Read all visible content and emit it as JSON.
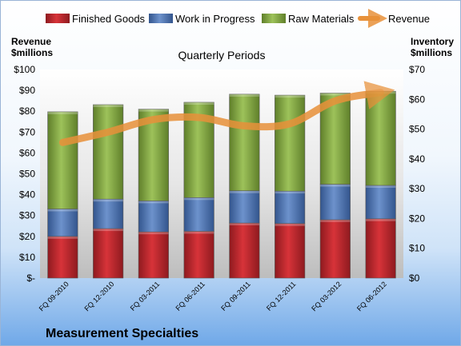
{
  "chart_data": {
    "type": "bar",
    "stacked": true,
    "title": "Quarterly Periods",
    "company": "Measurement Specialties",
    "categories": [
      "FQ 09-2010",
      "FQ 12-2010",
      "FQ 03-2011",
      "FQ 06-2011",
      "FQ 09-2011",
      "FQ 12-2011",
      "FQ 03-2012",
      "FQ 06-2012"
    ],
    "series": [
      {
        "name": "Finished Goods",
        "axis": "right",
        "color": "#c0272d",
        "values": [
          14,
          16.6,
          15.5,
          15.7,
          18.5,
          18.3,
          19.6,
          19.9
        ]
      },
      {
        "name": "Work in Progress",
        "axis": "right",
        "color": "#4f77b6",
        "values": [
          9.2,
          9.9,
          10.4,
          11.3,
          10.8,
          10.9,
          11.9,
          11.2
        ]
      },
      {
        "name": "Raw Materials",
        "axis": "right",
        "color": "#89ad45",
        "values": [
          32.6,
          31.7,
          30.8,
          32.0,
          32.4,
          32.2,
          30.6,
          31.6
        ]
      },
      {
        "name": "Revenue",
        "axis": "left",
        "type": "line",
        "color": "#e8913a",
        "values": [
          65,
          70,
          76,
          77,
          73,
          74,
          85,
          89
        ]
      }
    ],
    "y_left": {
      "label_line1": "Revenue",
      "label_line2": "$millions",
      "ylim": [
        0,
        100
      ],
      "ticks": [
        "$-",
        "$10",
        "$20",
        "$30",
        "$40",
        "$50",
        "$60",
        "$70",
        "$80",
        "$90",
        "$100"
      ]
    },
    "y_right": {
      "label_line1": "Inventory",
      "label_line2": "$millions",
      "ylim": [
        0,
        70
      ],
      "ticks": [
        "$0",
        "$10",
        "$20",
        "$30",
        "$40",
        "$50",
        "$60",
        "$70"
      ]
    },
    "legend_position": "top",
    "grid": false
  }
}
